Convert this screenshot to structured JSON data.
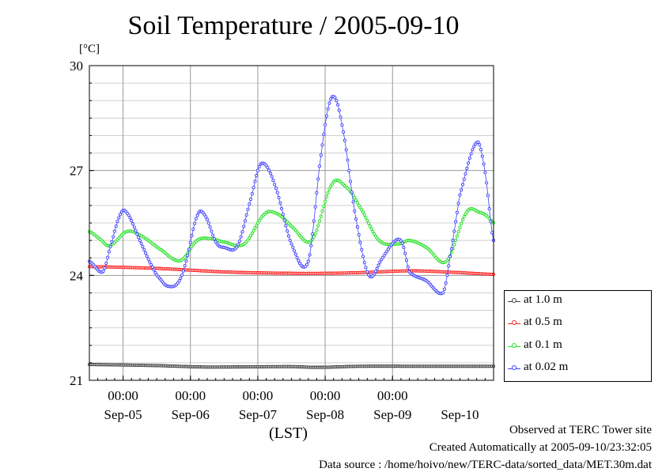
{
  "header": {
    "title": "Soil Temperature / 2005-09-10",
    "unit": "[°C]",
    "x_unit": "(LST)"
  },
  "notes": {
    "observed": "Observed at TERC Tower site",
    "created": "Created Automatically at 2005-09-10/23:32:05",
    "source": "Data source : /home/hoivo/new/TERC-data/sorted_data/MET.30m.dat"
  },
  "chart_data": {
    "type": "line",
    "title": "Soil Temperature / 2005-09-10",
    "ylabel": "[°C]",
    "xlabel": "(LST)",
    "ylim": [
      21,
      30
    ],
    "xlim": [
      0,
      6
    ],
    "y_ticks": [
      21,
      24,
      27,
      30
    ],
    "y_tick_labels": [
      "21",
      "24",
      "27",
      "30"
    ],
    "x_ticks": [
      0.5,
      1.5,
      2.5,
      3.5,
      4.5
    ],
    "x_time_labels": [
      "00:00",
      "00:00",
      "00:00",
      "00:00",
      "00:00"
    ],
    "x_date_labels": [
      "Sep-05",
      "Sep-06",
      "Sep-07",
      "Sep-08",
      "Sep-09",
      "Sep-10"
    ],
    "x_date_positions": [
      0.5,
      1.5,
      2.5,
      3.5,
      4.5,
      5.5
    ],
    "grid": true,
    "legend": "right",
    "series": [
      {
        "name": "at 1.0 m",
        "color": "#404040",
        "x": [
          0,
          1,
          1.7,
          2,
          3,
          3.4,
          4,
          5,
          6
        ],
        "y": [
          21.45,
          21.42,
          21.38,
          21.38,
          21.39,
          21.37,
          21.4,
          21.4,
          21.4
        ]
      },
      {
        "name": "at 0.5 m",
        "color": "#ff2020",
        "x": [
          0,
          1,
          2,
          3,
          3.5,
          4,
          4.8,
          5.5,
          6
        ],
        "y": [
          24.25,
          24.2,
          24.1,
          24.06,
          24.06,
          24.08,
          24.13,
          24.08,
          24.03
        ]
      },
      {
        "name": "at 0.1 m",
        "color": "#20e020",
        "x": [
          0,
          0.15,
          0.3,
          0.55,
          0.75,
          1.05,
          1.35,
          1.6,
          1.8,
          2.0,
          2.3,
          2.6,
          2.8,
          3.0,
          3.3,
          3.6,
          3.8,
          4.0,
          4.3,
          4.6,
          4.75,
          5.0,
          5.3,
          5.6,
          5.8,
          5.9,
          6.0
        ],
        "y": [
          25.25,
          25.05,
          24.85,
          25.25,
          25.15,
          24.75,
          24.42,
          25.0,
          25.05,
          24.95,
          24.9,
          25.75,
          25.75,
          25.4,
          25.0,
          26.6,
          26.55,
          26.0,
          25.0,
          24.9,
          25.0,
          24.8,
          24.4,
          25.8,
          25.8,
          25.7,
          25.5
        ]
      },
      {
        "name": "at 0.02 m",
        "color": "#4040ff",
        "x": [
          0,
          0.2,
          0.3,
          0.45,
          0.55,
          0.75,
          0.95,
          1.05,
          1.15,
          1.3,
          1.42,
          1.6,
          1.72,
          1.88,
          2.0,
          2.2,
          2.4,
          2.55,
          2.75,
          3.0,
          3.25,
          3.45,
          3.6,
          3.75,
          3.95,
          4.15,
          4.35,
          4.55,
          4.65,
          4.75,
          5.0,
          5.25,
          5.35,
          5.5,
          5.75,
          5.87,
          6.0
        ],
        "y": [
          24.4,
          24.1,
          24.75,
          25.7,
          25.8,
          25.0,
          24.2,
          23.9,
          23.7,
          23.75,
          24.3,
          25.7,
          25.7,
          24.95,
          24.8,
          24.85,
          26.2,
          27.2,
          26.6,
          24.9,
          24.4,
          27.6,
          29.1,
          28.3,
          25.7,
          24.0,
          24.5,
          25.0,
          24.9,
          24.1,
          23.85,
          23.5,
          24.5,
          26.3,
          27.8,
          27.0,
          25.0
        ]
      }
    ]
  }
}
